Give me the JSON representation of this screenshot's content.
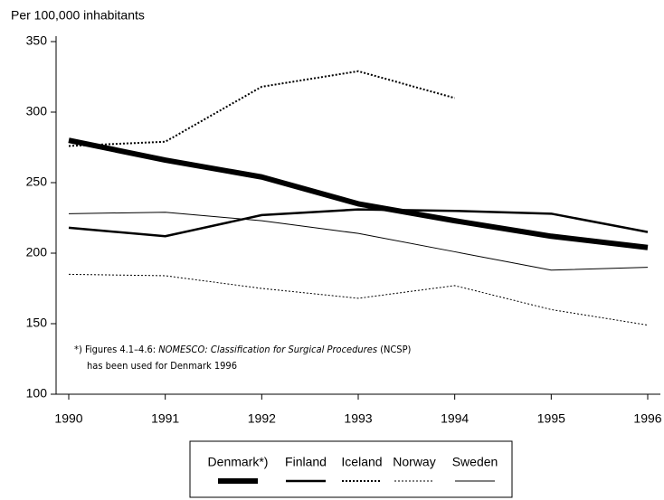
{
  "chart_data": {
    "type": "line",
    "y_axis_label": "Per 100,000 inhabitants",
    "annotation": {
      "line1": [
        "*) Figures 4.1–4.6: ",
        "NOMESCO: Classification for Surgical Procedures",
        " (NCSP)"
      ],
      "line2": "has been used for Denmark 1996"
    },
    "categories": [
      "1990",
      "1991",
      "1992",
      "1993",
      "1994",
      "1995",
      "1996"
    ],
    "ylim": [
      100,
      350
    ],
    "yticks": [
      100,
      150,
      200,
      250,
      300,
      350
    ],
    "legend": "bottom",
    "series": [
      {
        "name": "Denmark*)",
        "color": "#000000",
        "width": 6,
        "dash": "none",
        "values": [
          280,
          266,
          254,
          235,
          223,
          212,
          204
        ]
      },
      {
        "name": "Finland",
        "color": "#000000",
        "width": 2.5,
        "dash": "none",
        "values": [
          218,
          212,
          227,
          231,
          230,
          228,
          215
        ]
      },
      {
        "name": "Iceland",
        "color": "#000000",
        "width": 2,
        "dash": "2 2",
        "values": [
          276,
          279,
          318,
          329,
          310,
          null,
          null
        ]
      },
      {
        "name": "Norway",
        "color": "#000000",
        "width": 1,
        "dash": "2 2",
        "values": [
          185,
          184,
          175,
          168,
          177,
          160,
          149
        ]
      },
      {
        "name": "Sweden",
        "color": "#000000",
        "width": 1,
        "dash": "none",
        "values": [
          228,
          229,
          223,
          214,
          201,
          188,
          190
        ]
      }
    ]
  }
}
